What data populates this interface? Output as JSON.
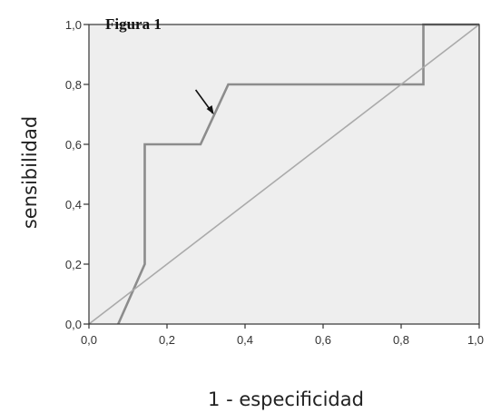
{
  "chart_data": {
    "type": "line",
    "title": "Figura 1",
    "xlabel": "1 - especificidad",
    "ylabel": "sensibilidad",
    "xlim": [
      0,
      1
    ],
    "ylim": [
      0,
      1
    ],
    "x_ticks": [
      "0,0",
      "0,2",
      "0,4",
      "0,6",
      "0,8",
      "1,0"
    ],
    "y_ticks": [
      "0,0",
      "0,2",
      "0,4",
      "0,6",
      "0,8",
      "1,0"
    ],
    "grid": false,
    "legend": "none",
    "series": [
      {
        "x": [
          0.075,
          0.143,
          0.143,
          0.286,
          0.357,
          0.857,
          0.857,
          1.0
        ],
        "y": [
          0.0,
          0.2,
          0.6,
          0.6,
          0.8,
          0.8,
          1.0,
          1.0
        ],
        "color": "#8c8c8c"
      },
      {
        "x": [
          0.0,
          1.0
        ],
        "y": [
          0.0,
          1.0
        ],
        "color": "#aaaaaa"
      }
    ],
    "annotations": [
      {
        "type": "arrow",
        "x": 0.32,
        "y": 0.7
      }
    ],
    "colors": {
      "plot_bg": "#eeeeee",
      "frame": "#333333"
    }
  }
}
